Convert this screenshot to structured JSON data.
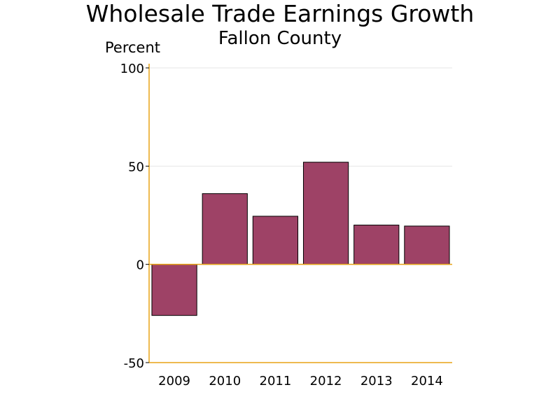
{
  "chart_data": {
    "type": "bar",
    "title": "Wholesale Trade Earnings Growth",
    "subtitle": "Fallon County",
    "ylabel": "Percent",
    "xlabel": "",
    "categories": [
      "2009",
      "2010",
      "2011",
      "2012",
      "2013",
      "2014"
    ],
    "values": [
      -26,
      36,
      24.5,
      52,
      20,
      19.5
    ],
    "ylim": [
      -50,
      100
    ],
    "yticks": [
      -50,
      0,
      50,
      100
    ],
    "grid": true,
    "legend": "none",
    "colors": {
      "bar_fill": "#9e4266",
      "bar_stroke": "#000000",
      "axis": "#e8a317",
      "grid": "#e6e6e6"
    }
  }
}
